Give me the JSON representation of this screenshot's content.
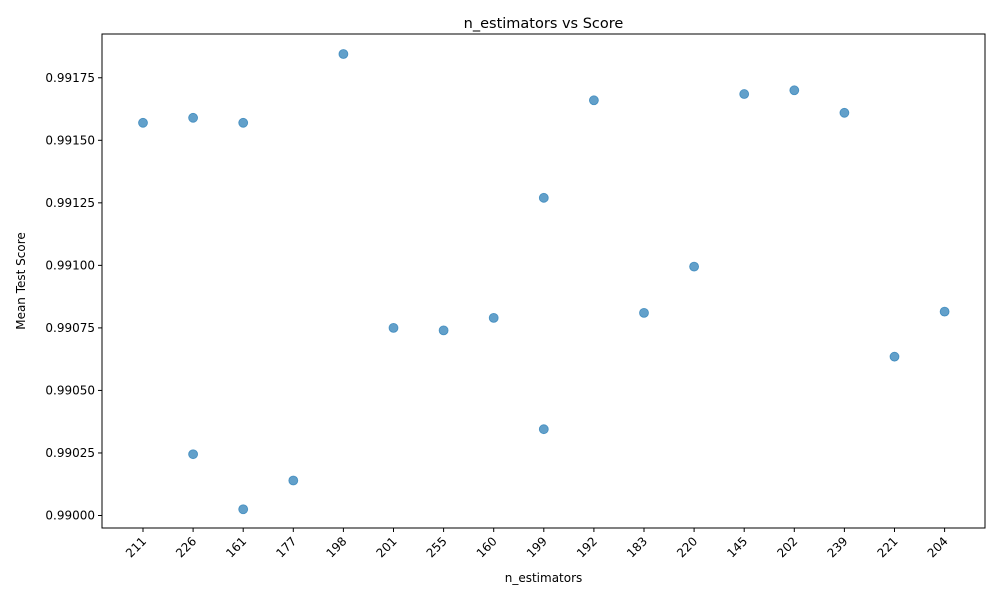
{
  "chart_data": {
    "type": "scatter",
    "title": "n_estimators vs Score",
    "xlabel": "n_estimators",
    "ylabel": "Mean Test Score",
    "categories": [
      "211",
      "226",
      "161",
      "177",
      "198",
      "201",
      "255",
      "160",
      "199",
      "192",
      "183",
      "220",
      "145",
      "202",
      "239",
      "221",
      "204"
    ],
    "yticks": [
      "0.99000",
      "0.99025",
      "0.99050",
      "0.99075",
      "0.99100",
      "0.99125",
      "0.99150",
      "0.99175"
    ],
    "ylim": [
      0.98995,
      0.991925
    ],
    "grid": false,
    "point_color": "#1f77b4",
    "points": [
      {
        "x": "211",
        "y": 0.99157
      },
      {
        "x": "226",
        "y": 0.99159
      },
      {
        "x": "161",
        "y": 0.99157
      },
      {
        "x": "198",
        "y": 0.991845
      },
      {
        "x": "192",
        "y": 0.99166
      },
      {
        "x": "145",
        "y": 0.991685
      },
      {
        "x": "202",
        "y": 0.9917
      },
      {
        "x": "239",
        "y": 0.99161
      },
      {
        "x": "199",
        "y": 0.99127
      },
      {
        "x": "220",
        "y": 0.990995
      },
      {
        "x": "201",
        "y": 0.99075
      },
      {
        "x": "255",
        "y": 0.99074
      },
      {
        "x": "160",
        "y": 0.99079
      },
      {
        "x": "183",
        "y": 0.99081
      },
      {
        "x": "204",
        "y": 0.990815
      },
      {
        "x": "221",
        "y": 0.990635
      },
      {
        "x": "199",
        "y": 0.990345
      },
      {
        "x": "226",
        "y": 0.990245
      },
      {
        "x": "177",
        "y": 0.99014
      },
      {
        "x": "161",
        "y": 0.990025
      }
    ]
  }
}
